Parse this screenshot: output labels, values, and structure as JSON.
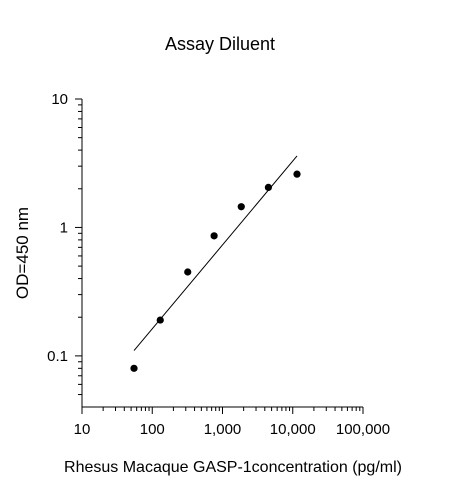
{
  "chart_data": {
    "type": "scatter",
    "title": "Assay Diluent",
    "xlabel": "Rhesus Macaque GASP-1concentration (pg/ml)",
    "ylabel": "OD=450 nm",
    "x_scale": "log",
    "y_scale": "log",
    "xlim": [
      10,
      100000
    ],
    "ylim": [
      0.04,
      10
    ],
    "x_ticks": [
      10,
      100,
      1000,
      10000,
      100000
    ],
    "x_tick_labels": [
      "10",
      "100",
      "1,000",
      "10,000",
      "100,000"
    ],
    "y_ticks": [
      0.1,
      1,
      10
    ],
    "y_tick_labels": [
      "0.1",
      "1",
      "10"
    ],
    "grid": false,
    "series": [
      {
        "type": "scatter",
        "points": [
          {
            "x": 55,
            "y": 0.08
          },
          {
            "x": 130,
            "y": 0.19
          },
          {
            "x": 320,
            "y": 0.45
          },
          {
            "x": 760,
            "y": 0.86
          },
          {
            "x": 1850,
            "y": 1.45
          },
          {
            "x": 4500,
            "y": 2.05
          },
          {
            "x": 11500,
            "y": 2.6
          }
        ]
      },
      {
        "type": "line",
        "points": [
          {
            "x": 55,
            "y": 0.11
          },
          {
            "x": 11500,
            "y": 3.6
          }
        ]
      }
    ],
    "colors": {
      "points": "#000000",
      "line": "#000000",
      "axis": "#000000"
    }
  }
}
